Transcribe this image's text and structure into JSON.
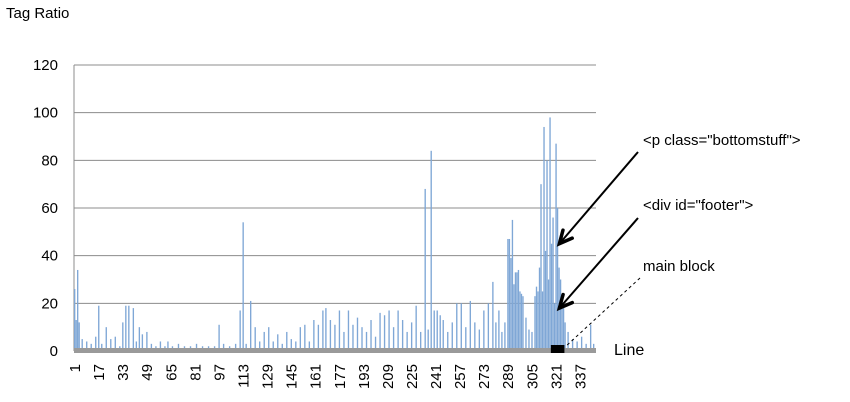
{
  "chart_data": {
    "type": "bar",
    "title": "",
    "ylabel": "Tag Ratio",
    "xlabel": "Line",
    "ylim": [
      0,
      120
    ],
    "yticks": [
      "0",
      "20",
      "40",
      "60",
      "80",
      "100",
      "120"
    ],
    "xticks": [
      "1",
      "17",
      "33",
      "49",
      "65",
      "81",
      "97",
      "113",
      "129",
      "145",
      "161",
      "177",
      "193",
      "209",
      "225",
      "241",
      "257",
      "273",
      "289",
      "305",
      "321",
      "337"
    ],
    "xrange": [
      1,
      347
    ],
    "grid": true,
    "bar_color": "#7fa7d6",
    "highlight_color": "#000000",
    "highlight_range": [
      318,
      327
    ],
    "bars": [
      {
        "x": 1,
        "y": 26
      },
      {
        "x": 2,
        "y": 13
      },
      {
        "x": 3,
        "y": 34
      },
      {
        "x": 4,
        "y": 12
      },
      {
        "x": 6,
        "y": 5
      },
      {
        "x": 9,
        "y": 4
      },
      {
        "x": 12,
        "y": 3
      },
      {
        "x": 15,
        "y": 6
      },
      {
        "x": 17,
        "y": 19
      },
      {
        "x": 19,
        "y": 3
      },
      {
        "x": 22,
        "y": 10
      },
      {
        "x": 25,
        "y": 5
      },
      {
        "x": 28,
        "y": 6
      },
      {
        "x": 31,
        "y": 2
      },
      {
        "x": 33,
        "y": 12
      },
      {
        "x": 35,
        "y": 19
      },
      {
        "x": 37,
        "y": 19
      },
      {
        "x": 40,
        "y": 18
      },
      {
        "x": 42,
        "y": 4
      },
      {
        "x": 44,
        "y": 10
      },
      {
        "x": 46,
        "y": 7
      },
      {
        "x": 49,
        "y": 8
      },
      {
        "x": 52,
        "y": 3
      },
      {
        "x": 55,
        "y": 2
      },
      {
        "x": 58,
        "y": 4
      },
      {
        "x": 61,
        "y": 2
      },
      {
        "x": 63,
        "y": 4
      },
      {
        "x": 66,
        "y": 2
      },
      {
        "x": 70,
        "y": 3
      },
      {
        "x": 74,
        "y": 2
      },
      {
        "x": 78,
        "y": 2
      },
      {
        "x": 82,
        "y": 3
      },
      {
        "x": 86,
        "y": 2
      },
      {
        "x": 90,
        "y": 2
      },
      {
        "x": 94,
        "y": 2
      },
      {
        "x": 97,
        "y": 11
      },
      {
        "x": 100,
        "y": 3
      },
      {
        "x": 104,
        "y": 2
      },
      {
        "x": 108,
        "y": 3
      },
      {
        "x": 111,
        "y": 17
      },
      {
        "x": 113,
        "y": 54
      },
      {
        "x": 115,
        "y": 3
      },
      {
        "x": 118,
        "y": 21
      },
      {
        "x": 121,
        "y": 10
      },
      {
        "x": 124,
        "y": 4
      },
      {
        "x": 127,
        "y": 8
      },
      {
        "x": 130,
        "y": 10
      },
      {
        "x": 133,
        "y": 4
      },
      {
        "x": 136,
        "y": 7
      },
      {
        "x": 139,
        "y": 3
      },
      {
        "x": 142,
        "y": 8
      },
      {
        "x": 145,
        "y": 5
      },
      {
        "x": 148,
        "y": 4
      },
      {
        "x": 151,
        "y": 10
      },
      {
        "x": 154,
        "y": 11
      },
      {
        "x": 157,
        "y": 4
      },
      {
        "x": 160,
        "y": 13
      },
      {
        "x": 163,
        "y": 11
      },
      {
        "x": 166,
        "y": 17
      },
      {
        "x": 168,
        "y": 18
      },
      {
        "x": 171,
        "y": 13
      },
      {
        "x": 174,
        "y": 11
      },
      {
        "x": 177,
        "y": 17
      },
      {
        "x": 180,
        "y": 8
      },
      {
        "x": 183,
        "y": 17
      },
      {
        "x": 186,
        "y": 11
      },
      {
        "x": 189,
        "y": 14
      },
      {
        "x": 192,
        "y": 10
      },
      {
        "x": 195,
        "y": 8
      },
      {
        "x": 198,
        "y": 13
      },
      {
        "x": 201,
        "y": 6
      },
      {
        "x": 204,
        "y": 16
      },
      {
        "x": 207,
        "y": 15
      },
      {
        "x": 210,
        "y": 17
      },
      {
        "x": 213,
        "y": 10
      },
      {
        "x": 216,
        "y": 17
      },
      {
        "x": 219,
        "y": 13
      },
      {
        "x": 222,
        "y": 8
      },
      {
        "x": 225,
        "y": 12
      },
      {
        "x": 228,
        "y": 19
      },
      {
        "x": 231,
        "y": 8
      },
      {
        "x": 234,
        "y": 68
      },
      {
        "x": 236,
        "y": 9
      },
      {
        "x": 238,
        "y": 84
      },
      {
        "x": 240,
        "y": 17
      },
      {
        "x": 242,
        "y": 17
      },
      {
        "x": 244,
        "y": 15
      },
      {
        "x": 246,
        "y": 13
      },
      {
        "x": 249,
        "y": 8
      },
      {
        "x": 252,
        "y": 12
      },
      {
        "x": 255,
        "y": 20
      },
      {
        "x": 258,
        "y": 20
      },
      {
        "x": 261,
        "y": 10
      },
      {
        "x": 264,
        "y": 21
      },
      {
        "x": 267,
        "y": 12
      },
      {
        "x": 270,
        "y": 9
      },
      {
        "x": 273,
        "y": 17
      },
      {
        "x": 276,
        "y": 20
      },
      {
        "x": 279,
        "y": 29
      },
      {
        "x": 281,
        "y": 12
      },
      {
        "x": 283,
        "y": 17
      },
      {
        "x": 285,
        "y": 8
      },
      {
        "x": 287,
        "y": 12
      },
      {
        "x": 289,
        "y": 47
      },
      {
        "x": 290,
        "y": 47
      },
      {
        "x": 291,
        "y": 39
      },
      {
        "x": 292,
        "y": 55
      },
      {
        "x": 293,
        "y": 28
      },
      {
        "x": 294,
        "y": 33
      },
      {
        "x": 295,
        "y": 33
      },
      {
        "x": 296,
        "y": 34
      },
      {
        "x": 297,
        "y": 25
      },
      {
        "x": 298,
        "y": 24
      },
      {
        "x": 299,
        "y": 23
      },
      {
        "x": 301,
        "y": 14
      },
      {
        "x": 303,
        "y": 9
      },
      {
        "x": 305,
        "y": 8
      },
      {
        "x": 307,
        "y": 23
      },
      {
        "x": 308,
        "y": 27
      },
      {
        "x": 309,
        "y": 25
      },
      {
        "x": 310,
        "y": 35
      },
      {
        "x": 311,
        "y": 70
      },
      {
        "x": 312,
        "y": 25
      },
      {
        "x": 313,
        "y": 94
      },
      {
        "x": 314,
        "y": 42
      },
      {
        "x": 315,
        "y": 80
      },
      {
        "x": 316,
        "y": 30
      },
      {
        "x": 317,
        "y": 98
      },
      {
        "x": 318,
        "y": 45
      },
      {
        "x": 319,
        "y": 56
      },
      {
        "x": 320,
        "y": 20
      },
      {
        "x": 321,
        "y": 87
      },
      {
        "x": 322,
        "y": 60
      },
      {
        "x": 323,
        "y": 35
      },
      {
        "x": 324,
        "y": 30
      },
      {
        "x": 325,
        "y": 22
      },
      {
        "x": 326,
        "y": 18
      },
      {
        "x": 327,
        "y": 12
      },
      {
        "x": 329,
        "y": 8
      },
      {
        "x": 332,
        "y": 5
      },
      {
        "x": 335,
        "y": 4
      },
      {
        "x": 338,
        "y": 6
      },
      {
        "x": 341,
        "y": 3
      },
      {
        "x": 344,
        "y": 11
      },
      {
        "x": 346,
        "y": 3
      }
    ],
    "annotations": [
      {
        "text": "<p class=\"bottomstuff\">",
        "target_x": 321,
        "target_y": 45
      },
      {
        "text": "<div id=\"footer\">",
        "target_x": 321,
        "target_y": 18
      },
      {
        "text": "main block",
        "target_x": 324,
        "target_y": 2
      }
    ]
  }
}
